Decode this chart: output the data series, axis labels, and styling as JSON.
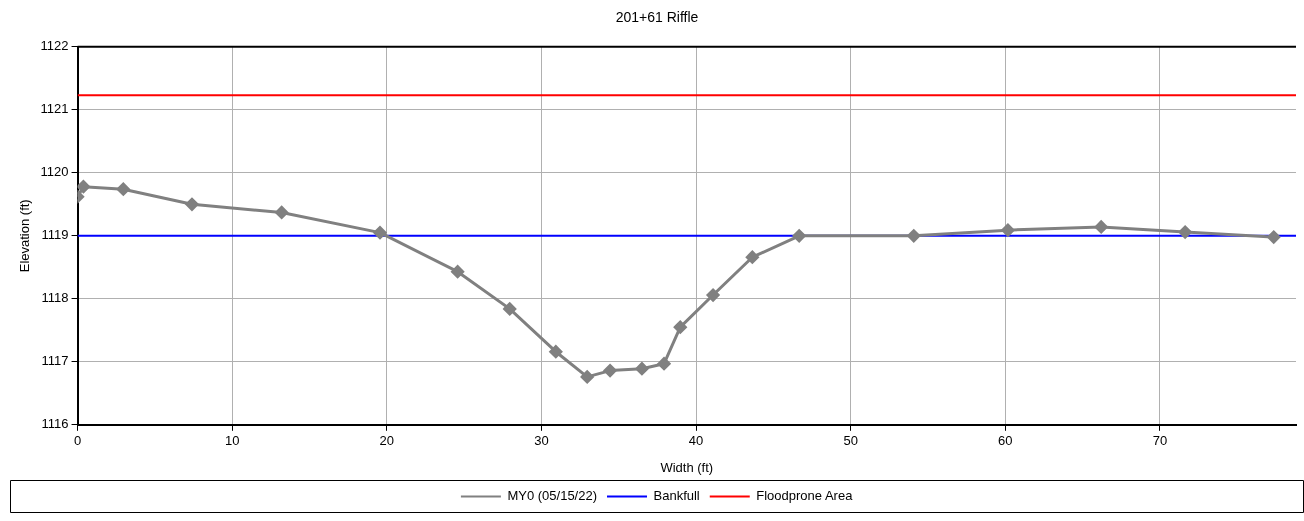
{
  "chart_data": {
    "type": "line",
    "title": "201+61 Riffle",
    "xlabel": "Width (ft)",
    "ylabel": "Elevation (ft)",
    "xlim": [
      0,
      78.8
    ],
    "xticks": [
      0,
      10,
      20,
      30,
      40,
      50,
      60,
      70
    ],
    "ylim": [
      1116,
      1122
    ],
    "yticks": [
      1116,
      1117,
      1118,
      1119,
      1120,
      1121,
      1122
    ],
    "grid": true,
    "legend": "bottom",
    "marker": "diamond",
    "line_style": "solid",
    "series": [
      {
        "name": "MY0 (05/15/22)",
        "color": "#808080",
        "x": [
          0,
          0.38,
          2.96,
          7.4,
          13.2,
          19.56,
          24.58,
          27.95,
          30.93,
          32.96,
          34.44,
          36.5,
          37.93,
          38.98,
          41.1,
          43.64,
          46.67,
          54.08,
          60.17,
          66.2,
          71.63,
          77.36
        ],
        "values": [
          1119.62,
          1119.78,
          1119.74,
          1119.5,
          1119.37,
          1119.05,
          1118.43,
          1117.84,
          1117.16,
          1116.76,
          1116.86,
          1116.89,
          1116.97,
          1117.55,
          1118.06,
          1118.66,
          1119.0,
          1119.0,
          1119.09,
          1119.14,
          1119.06,
          1118.98
        ]
      }
    ],
    "ref_lines": [
      {
        "axis": "y",
        "value": 1119.0,
        "label": "Bankfull",
        "color": "#0000ff"
      },
      {
        "axis": "y",
        "value": 1121.23,
        "label": "Floodprone Area",
        "color": "#ff0000"
      }
    ]
  }
}
